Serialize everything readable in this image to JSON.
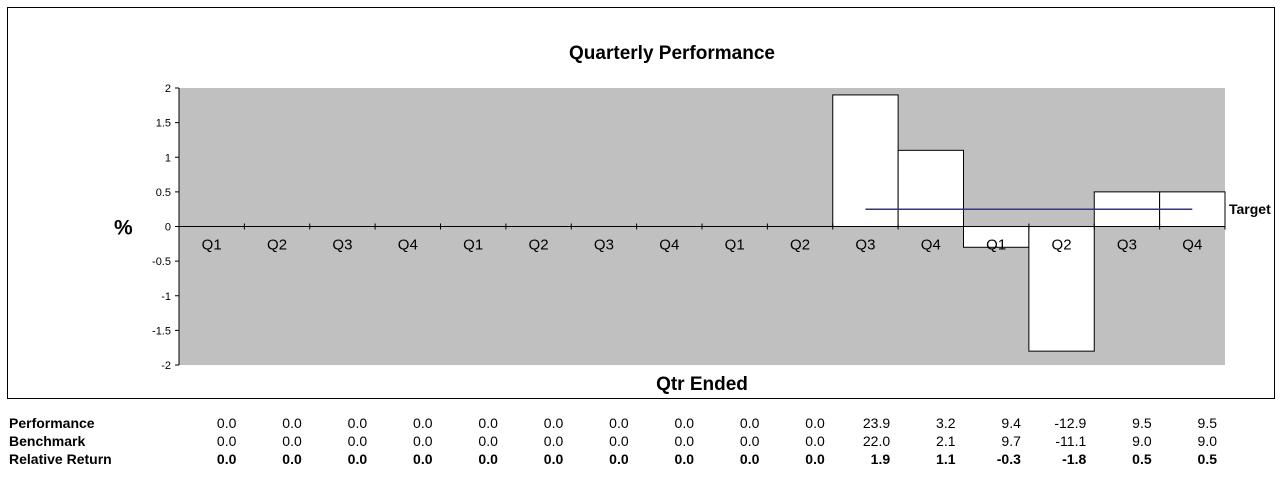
{
  "chart_data": {
    "type": "bar",
    "title": "Quarterly Performance",
    "xlabel": "Qtr Ended",
    "ylabel": "%",
    "categories": [
      "Q1",
      "Q2",
      "Q3",
      "Q4",
      "Q1",
      "Q2",
      "Q3",
      "Q4",
      "Q1",
      "Q2",
      "Q3",
      "Q4",
      "Q1",
      "Q2",
      "Q3",
      "Q4"
    ],
    "series": [
      {
        "values": [
          0,
          0,
          0,
          0,
          0,
          0,
          0,
          0,
          0,
          0,
          1.9,
          1.1,
          -0.3,
          -1.8,
          0.5,
          0.5
        ]
      }
    ],
    "target": {
      "label": "Target",
      "value": 0.25,
      "start_index": 10,
      "end_index": 15
    },
    "yticks": [
      "2",
      "1.5",
      "1",
      "0.5",
      "0",
      "-0.5",
      "-1",
      "-1.5",
      "-2"
    ],
    "ylim": [
      -2,
      2
    ],
    "grid": false,
    "plot_background": "#c0c0c0",
    "bar_fill": "#ffffff",
    "target_color": "#333399"
  },
  "table": {
    "rows": [
      {
        "label": "Performance",
        "bold": false,
        "values": [
          "0.0",
          "0.0",
          "0.0",
          "0.0",
          "0.0",
          "0.0",
          "0.0",
          "0.0",
          "0.0",
          "0.0",
          "23.9",
          "3.2",
          "9.4",
          "-12.9",
          "9.5",
          "9.5"
        ]
      },
      {
        "label": "Benchmark",
        "bold": false,
        "values": [
          "0.0",
          "0.0",
          "0.0",
          "0.0",
          "0.0",
          "0.0",
          "0.0",
          "0.0",
          "0.0",
          "0.0",
          "22.0",
          "2.1",
          "9.7",
          "-11.1",
          "9.0",
          "9.0"
        ]
      },
      {
        "label": "Relative Return",
        "bold": true,
        "values": [
          "0.0",
          "0.0",
          "0.0",
          "0.0",
          "0.0",
          "0.0",
          "0.0",
          "0.0",
          "0.0",
          "0.0",
          "1.9",
          "1.1",
          "-0.3",
          "-1.8",
          "0.5",
          "0.5"
        ]
      }
    ]
  }
}
